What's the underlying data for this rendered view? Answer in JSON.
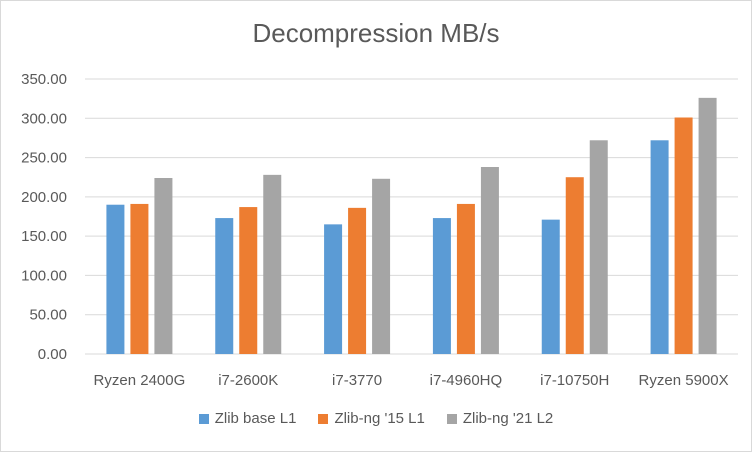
{
  "chart_data": {
    "type": "bar",
    "title": "Decompression MB/s",
    "xlabel": "",
    "ylabel": "",
    "categories": [
      "Ryzen 2400G",
      "i7-2600K",
      "i7-3770",
      "i7-4960HQ",
      "i7-10750H",
      "Ryzen 5900X"
    ],
    "series": [
      {
        "name": "Zlib base L1",
        "color": "#5b9bd5",
        "values": [
          190,
          173,
          165,
          173,
          171,
          272
        ]
      },
      {
        "name": "Zlib-ng '15 L1",
        "color": "#ed7d31",
        "values": [
          191,
          187,
          186,
          191,
          225,
          301
        ]
      },
      {
        "name": "Zlib-ng '21 L2",
        "color": "#a5a5a5",
        "values": [
          224,
          228,
          223,
          238,
          272,
          326
        ]
      }
    ],
    "ylim": [
      0,
      350
    ],
    "yticks": [
      "0.00",
      "50.00",
      "100.00",
      "150.00",
      "200.00",
      "250.00",
      "300.00",
      "350.00"
    ],
    "grid": true,
    "legend": "bottom"
  }
}
